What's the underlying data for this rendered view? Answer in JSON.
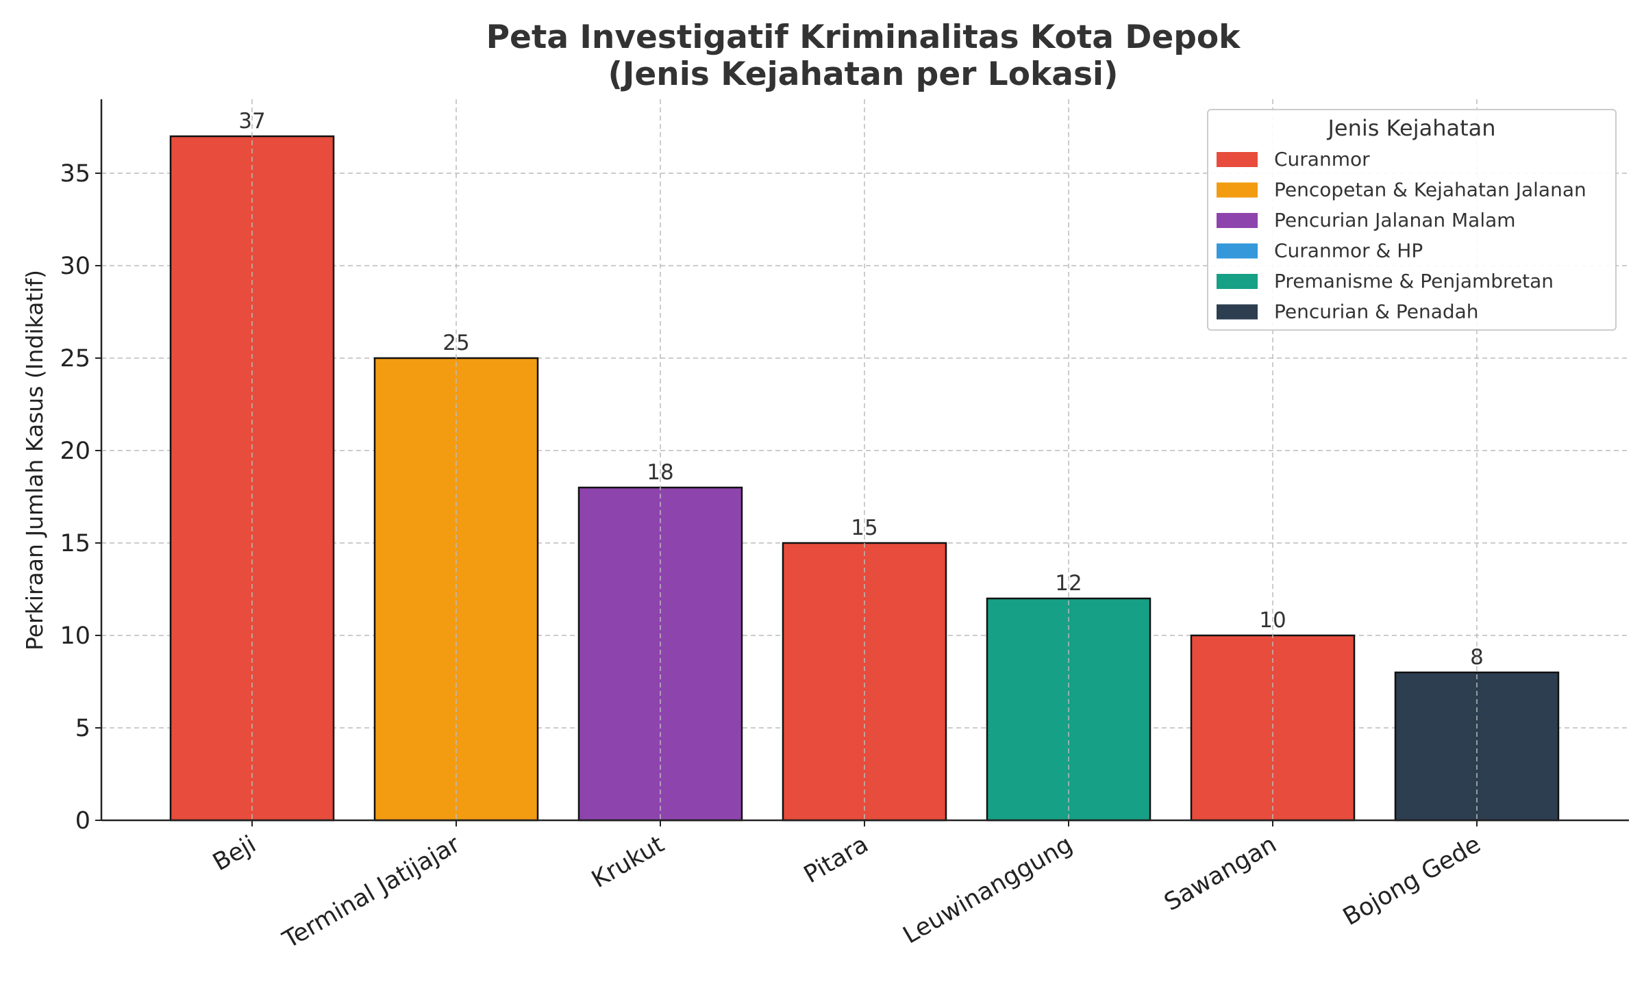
{
  "chart_data": {
    "type": "bar",
    "title": "Peta Investigatif Kriminalitas Kota Depok",
    "subtitle": "(Jenis Kejahatan per Lokasi)",
    "xlabel": "",
    "ylabel": "Perkiraan Jumlah Kasus (Indikatif)",
    "ylim": [
      0,
      39
    ],
    "yticks": [
      0,
      5,
      10,
      15,
      20,
      25,
      30,
      35
    ],
    "grid": true,
    "legend_placement": "top-right",
    "legend_title": "Jenis Kejahatan",
    "categories": [
      "Beji",
      "Terminal Jatijajar",
      "Krukut",
      "Pitara",
      "Leuwinanggung",
      "Sawangan",
      "Bojong Gede"
    ],
    "values": [
      37,
      25,
      18,
      15,
      12,
      10,
      8
    ],
    "bar_categories": [
      "Curanmor",
      "Pencopetan & Kejahatan Jalanan",
      "Pencurian Jalanan Malam",
      "Curanmor",
      "Premanisme & Penjambretan",
      "Curanmor",
      "Pencurian & Penadah"
    ],
    "legend": [
      {
        "label": "Curanmor",
        "color": "#e74c3c"
      },
      {
        "label": "Pencopetan & Kejahatan Jalanan",
        "color": "#f39c12"
      },
      {
        "label": "Pencurian Jalanan Malam",
        "color": "#8e44ad"
      },
      {
        "label": "Curanmor & HP",
        "color": "#3498db"
      },
      {
        "label": "Premanisme & Penjambretan",
        "color": "#16a085"
      },
      {
        "label": "Pencurian & Penadah",
        "color": "#2c3e50"
      }
    ],
    "bar_colors": [
      "#e74c3c",
      "#f39c12",
      "#8e44ad",
      "#e74c3c",
      "#16a085",
      "#e74c3c",
      "#2c3e50"
    ]
  }
}
